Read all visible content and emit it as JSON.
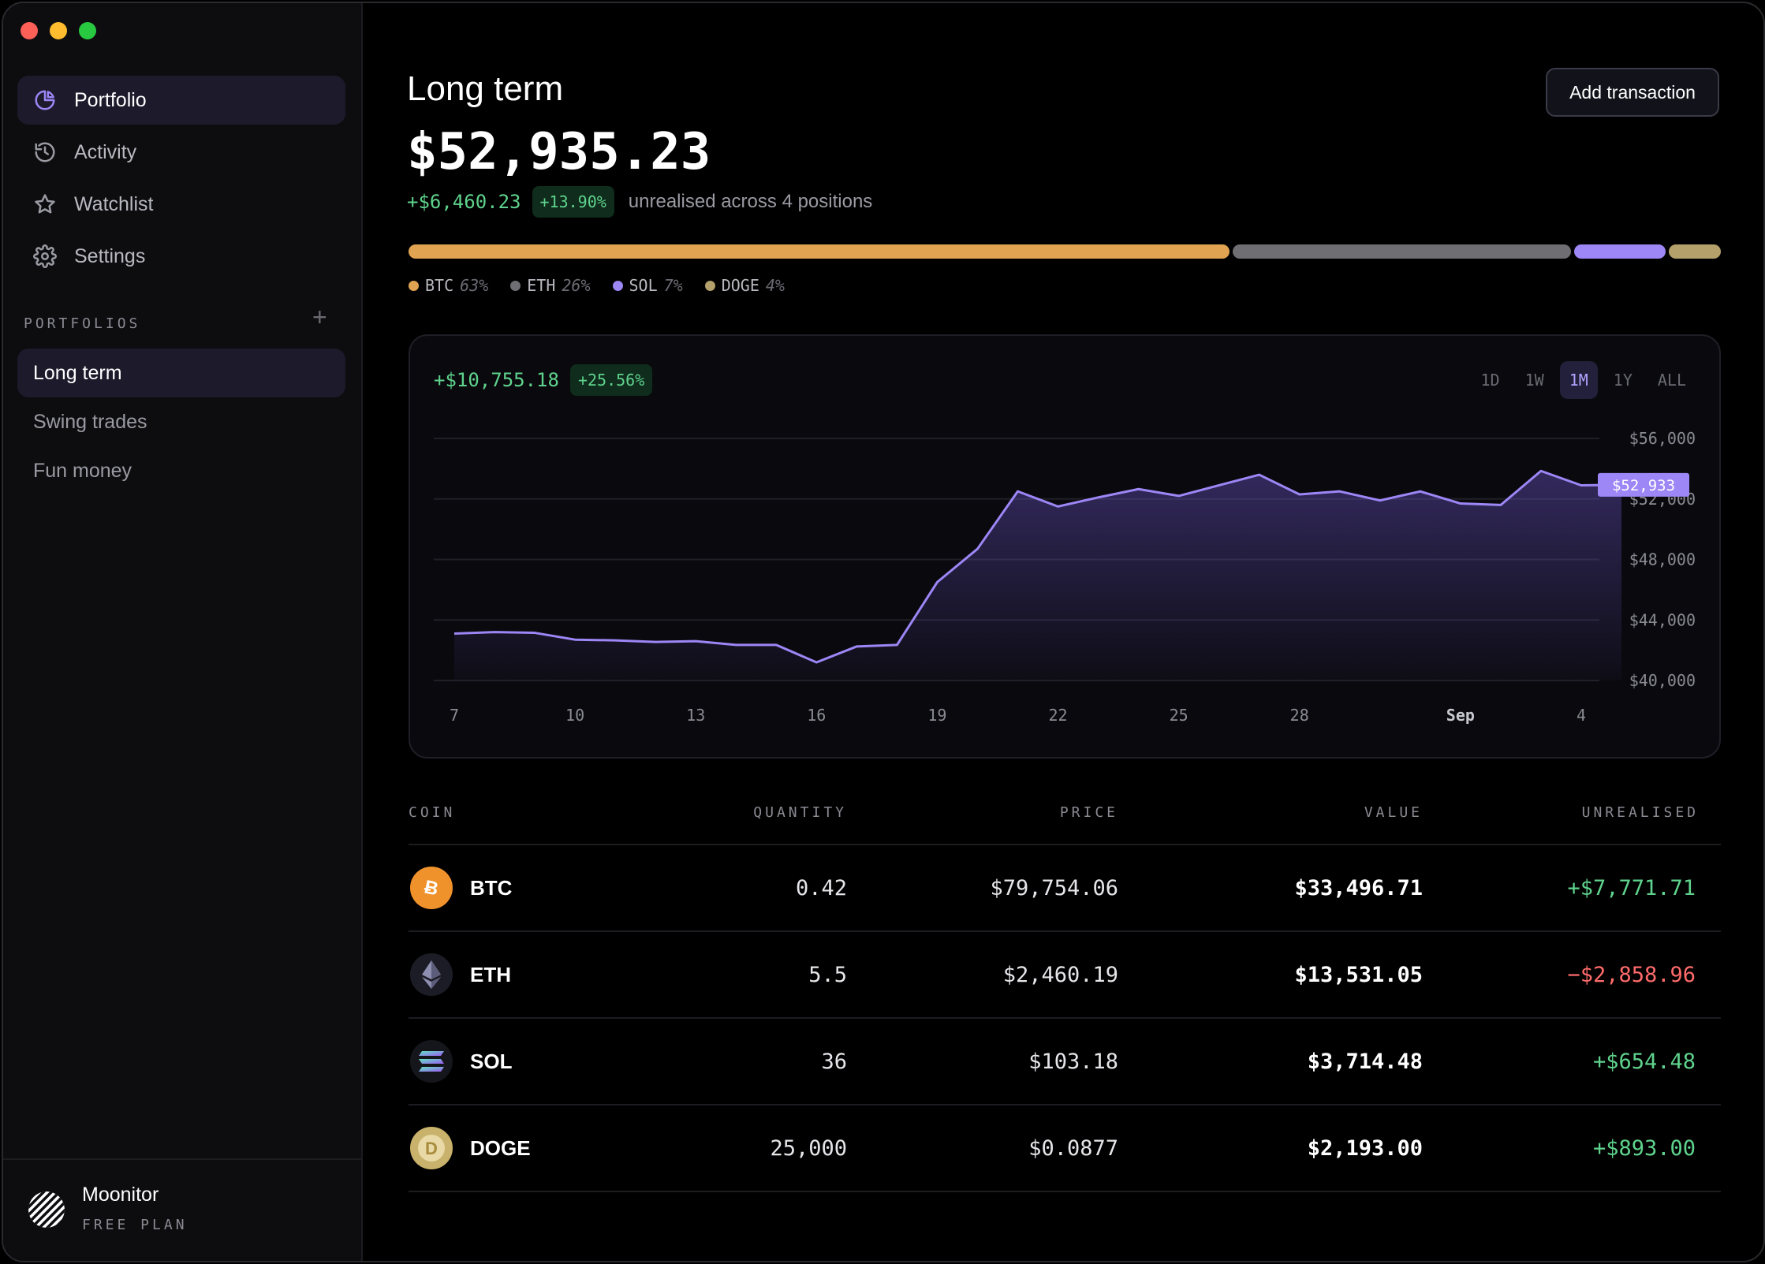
{
  "sidebar": {
    "nav": [
      {
        "label": "Portfolio",
        "icon": "pie-chart-icon",
        "active": true
      },
      {
        "label": "Activity",
        "icon": "history-icon",
        "active": false
      },
      {
        "label": "Watchlist",
        "icon": "star-icon",
        "active": false
      },
      {
        "label": "Settings",
        "icon": "gear-icon",
        "active": false
      }
    ],
    "portfolios_label": "PORTFOLIOS",
    "portfolios": [
      {
        "label": "Long term",
        "active": true
      },
      {
        "label": "Swing trades",
        "active": false
      },
      {
        "label": "Fun money",
        "active": false
      }
    ],
    "footer": {
      "name": "Moonitor",
      "plan": "FREE PLAN"
    }
  },
  "header": {
    "title": "Long term",
    "total": "$52,935.23",
    "gain_amount": "+$6,460.23",
    "gain_pct": "+13.90%",
    "gain_desc": "unrealised across 4 positions",
    "add_button": "Add transaction"
  },
  "allocation": [
    {
      "symbol": "BTC",
      "pct_label": "63%",
      "pct": 63,
      "color": "#e0a352"
    },
    {
      "symbol": "ETH",
      "pct_label": "26%",
      "pct": 26,
      "color": "#6e6e73"
    },
    {
      "symbol": "SOL",
      "pct_label": "7%",
      "pct": 7,
      "color": "#9d86f5"
    },
    {
      "symbol": "DOGE",
      "pct_label": "4%",
      "pct": 4,
      "color": "#b3a06a"
    }
  ],
  "chart": {
    "gain_amount": "+$10,755.18",
    "gain_pct": "+25.56%",
    "ranges": [
      {
        "label": "1D",
        "active": false
      },
      {
        "label": "1W",
        "active": false
      },
      {
        "label": "1M",
        "active": true
      },
      {
        "label": "1Y",
        "active": false
      },
      {
        "label": "ALL",
        "active": false
      }
    ]
  },
  "chart_data": {
    "type": "area",
    "y_ticks": [
      56000,
      52000,
      48000,
      44000,
      40000
    ],
    "y_tick_labels": [
      "$56,000",
      "$52,000",
      "$48,000",
      "$44,000",
      "$40,000"
    ],
    "ylim": [
      40000,
      56000
    ],
    "x_tick_labels": [
      "7",
      "10",
      "13",
      "16",
      "19",
      "22",
      "25",
      "28",
      "Sep",
      "4"
    ],
    "x_tick_index": [
      0,
      3,
      6,
      9,
      12,
      15,
      18,
      21,
      25,
      28
    ],
    "values": [
      43100,
      43200,
      43150,
      42700,
      42650,
      42550,
      42600,
      42350,
      42350,
      41200,
      42250,
      42350,
      46500,
      48700,
      52500,
      51500,
      52100,
      52650,
      52200,
      52900,
      53600,
      52300,
      52500,
      51900,
      52500,
      51700,
      51600,
      53850,
      52900,
      52933
    ],
    "current_label": "$52,933",
    "grid": true,
    "line_color": "#9d86f5"
  },
  "table": {
    "headers": {
      "coin": "COIN",
      "quantity": "QUANTITY",
      "price": "PRICE",
      "value": "VALUE",
      "unrealised": "UNREALISED"
    },
    "rows": [
      {
        "symbol": "BTC",
        "icon": "bitcoin-icon",
        "quantity": "0.42",
        "price": "$79,754.06",
        "value": "$33,496.71",
        "unrealised": "+$7,771.71",
        "positive": true
      },
      {
        "symbol": "ETH",
        "icon": "ethereum-icon",
        "quantity": "5.5",
        "price": "$2,460.19",
        "value": "$13,531.05",
        "unrealised": "−$2,858.96",
        "positive": false
      },
      {
        "symbol": "SOL",
        "icon": "solana-icon",
        "quantity": "36",
        "price": "$103.18",
        "value": "$3,714.48",
        "unrealised": "+$654.48",
        "positive": true
      },
      {
        "symbol": "DOGE",
        "icon": "dogecoin-icon",
        "quantity": "25,000",
        "price": "$0.0877",
        "value": "$2,193.00",
        "unrealised": "+$893.00",
        "positive": true
      }
    ]
  }
}
